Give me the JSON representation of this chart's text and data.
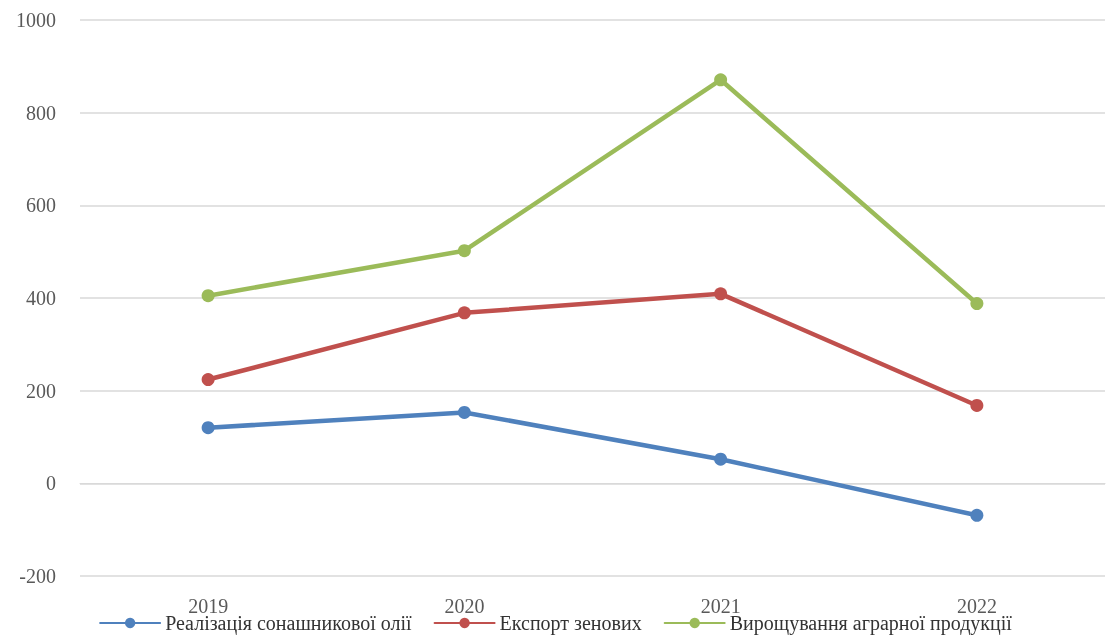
{
  "chart_data": {
    "type": "line",
    "categories": [
      "2019",
      "2020",
      "2021",
      "2022"
    ],
    "series": [
      {
        "name": "Реалізація сонашникової олії",
        "color": "#4f81bd",
        "values": [
          120,
          153,
          52,
          -69
        ]
      },
      {
        "name": "Експорт зенових",
        "color": "#c0504d",
        "values": [
          224,
          368,
          409,
          168
        ]
      },
      {
        "name": "Вирощування аграрної продукції",
        "color": "#9bbb59",
        "values": [
          405,
          502,
          871,
          388
        ]
      }
    ],
    "ylim": [
      -200,
      1000
    ],
    "yticks": [
      -200,
      0,
      200,
      400,
      600,
      800,
      1000
    ],
    "grid": "y",
    "legend": "bottom",
    "marker": "circle",
    "line_style": "solid"
  }
}
